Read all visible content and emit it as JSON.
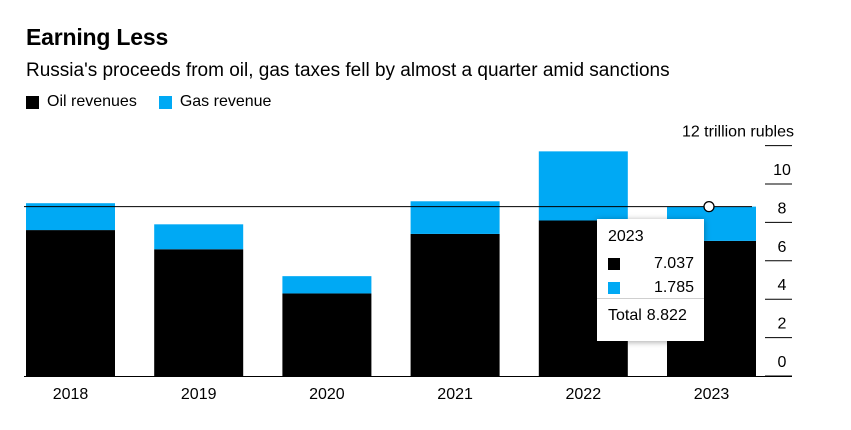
{
  "title": "Earning Less",
  "subtitle": "Russia's proceeds from oil, gas taxes fell by almost a quarter amid sanctions",
  "legend": [
    {
      "label": "Oil revenues",
      "color": "#000000"
    },
    {
      "label": "Gas revenue",
      "color": "#00a9f4"
    }
  ],
  "chart_data": {
    "type": "bar",
    "stacked": true,
    "categories": [
      "2018",
      "2019",
      "2020",
      "2021",
      "2022",
      "2023"
    ],
    "series": [
      {
        "name": "Oil revenues",
        "color": "#000000",
        "values": [
          7.6,
          6.6,
          4.3,
          7.4,
          8.1,
          7.037
        ]
      },
      {
        "name": "Gas revenue",
        "color": "#00a9f4",
        "values": [
          1.4,
          1.3,
          0.9,
          1.7,
          3.6,
          1.785
        ]
      }
    ],
    "ylabel": "12 trillion rubles",
    "ylim": [
      0,
      12
    ],
    "yticks": [
      0,
      2,
      4,
      6,
      8,
      10
    ],
    "axis_side": "right",
    "reference_value": 8.822
  },
  "tooltip": {
    "year": "2023",
    "oil_value": "7.037",
    "gas_value": "1.785",
    "total_label": "Total",
    "total_value": "8.822"
  }
}
